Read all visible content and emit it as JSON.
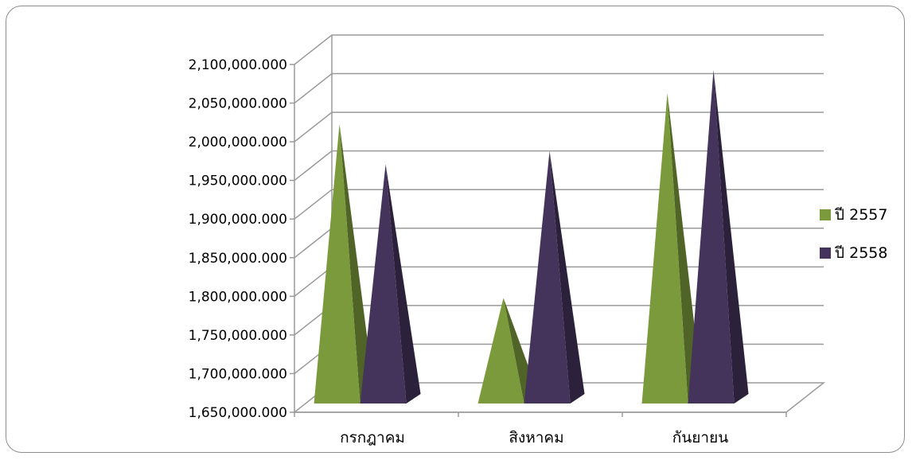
{
  "chart_data": {
    "type": "bar",
    "style": "3d-pyramid",
    "categories": [
      "กรกฎาคม",
      "สิงหาคม",
      "กันยายน"
    ],
    "series": [
      {
        "name": "ปี 2557",
        "values": [
          2025000,
          1800000,
          2065000
        ],
        "color": "#7a9a3b"
      },
      {
        "name": "ปี 2558",
        "values": [
          1973000,
          1990000,
          2095000
        ],
        "color": "#44335a"
      }
    ],
    "y_ticks": [
      "1,650,000.000",
      "1,700,000.000",
      "1,750,000.000",
      "1,800,000.000",
      "1,850,000.000",
      "1,900,000.000",
      "1,950,000.000",
      "2,000,000.000",
      "2,050,000.000",
      "2,100,000.000"
    ],
    "ylim": [
      1650000,
      2100000
    ],
    "grid": true,
    "legend_position": "right"
  }
}
